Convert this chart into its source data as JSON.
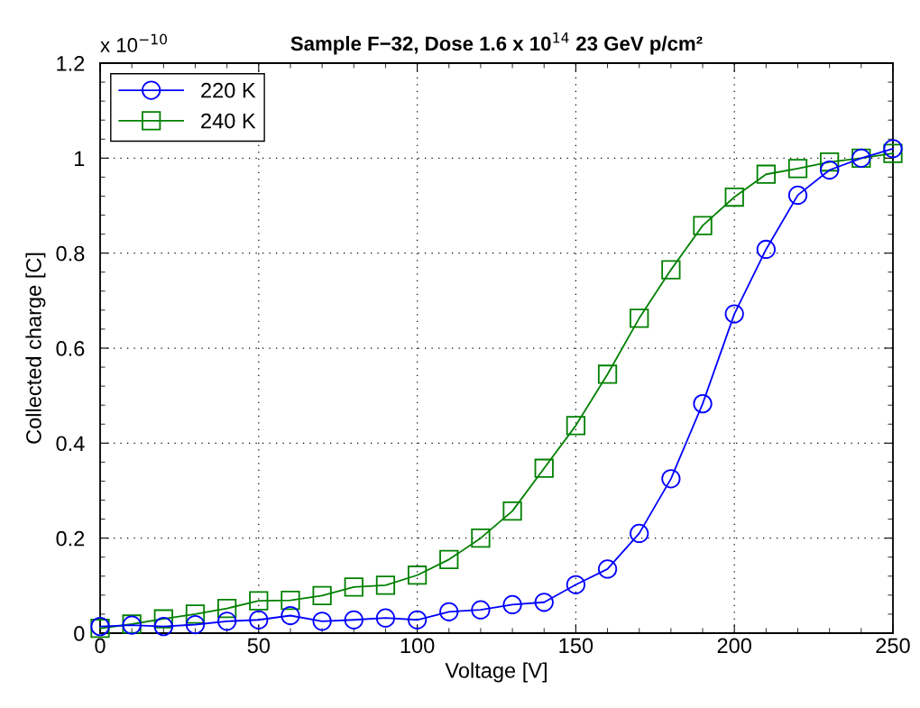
{
  "chart_data": {
    "type": "line",
    "title": "Sample F−32, Dose 1.6 x 10$^{14}$ 23 GeV p/cm²",
    "xlabel": "Voltage [V]",
    "ylabel": "Collected charge [C]",
    "annotations": [
      "x 10$^{−10}$"
    ],
    "x": [
      0,
      10,
      20,
      30,
      40,
      50,
      60,
      70,
      80,
      90,
      100,
      110,
      120,
      130,
      140,
      150,
      160,
      170,
      180,
      190,
      200,
      210,
      220,
      230,
      240,
      250
    ],
    "series": [
      {
        "name": "220 K",
        "color": "#0000ff",
        "marker": "circle",
        "values": [
          0.014,
          0.017,
          0.014,
          0.018,
          0.025,
          0.028,
          0.037,
          0.025,
          0.028,
          0.032,
          0.028,
          0.045,
          0.049,
          0.06,
          0.065,
          0.102,
          0.135,
          0.21,
          0.325,
          0.483,
          0.672,
          0.808,
          0.922,
          0.975,
          1.0,
          1.02
        ]
      },
      {
        "name": "240 K",
        "color": "#008000",
        "marker": "square",
        "values": [
          0.01,
          0.019,
          0.03,
          0.04,
          0.052,
          0.068,
          0.069,
          0.079,
          0.097,
          0.101,
          0.122,
          0.155,
          0.2,
          0.257,
          0.347,
          0.437,
          0.545,
          0.663,
          0.765,
          0.858,
          0.918,
          0.966,
          0.978,
          0.992,
          1.0,
          1.01
        ]
      }
    ],
    "xlim": [
      0,
      250
    ],
    "xticks": [
      0,
      50,
      100,
      150,
      200,
      250
    ],
    "ylim": [
      0,
      1.2
    ],
    "yticks": [
      0,
      0.2,
      0.4,
      0.6,
      0.8,
      1,
      1.2
    ],
    "grid": true,
    "legend": "top left",
    "line_style": "solid"
  }
}
